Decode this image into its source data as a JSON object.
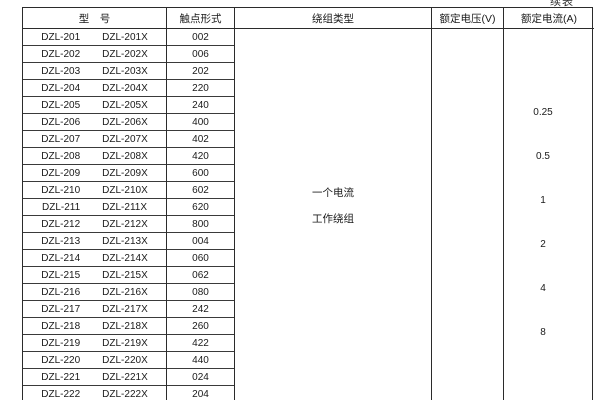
{
  "continued_label": "续表",
  "colors": {
    "background": "#ffffff",
    "border": "#2b2b2b",
    "row_line": "#3a3a3a",
    "text": "#1a1a1a"
  },
  "table": {
    "headers": {
      "model": "型　号",
      "contact_form": "触点形式",
      "winding_type": "绕组类型",
      "rated_voltage": "额定电压(V)",
      "rated_current": "额定电流(A)"
    },
    "winding_type_lines": [
      "一个电流",
      "工作绕组"
    ],
    "rated_current_values": [
      "0.25",
      "0.5",
      "1",
      "2",
      "4",
      "8"
    ],
    "rows": [
      {
        "model": "DZL-201",
        "model_x": "DZL-201X",
        "contact_form": "002"
      },
      {
        "model": "DZL-202",
        "model_x": "DZL-202X",
        "contact_form": "006"
      },
      {
        "model": "DZL-203",
        "model_x": "DZL-203X",
        "contact_form": "202"
      },
      {
        "model": "DZL-204",
        "model_x": "DZL-204X",
        "contact_form": "220"
      },
      {
        "model": "DZL-205",
        "model_x": "DZL-205X",
        "contact_form": "240"
      },
      {
        "model": "DZL-206",
        "model_x": "DZL-206X",
        "contact_form": "400"
      },
      {
        "model": "DZL-207",
        "model_x": "DZL-207X",
        "contact_form": "402"
      },
      {
        "model": "DZL-208",
        "model_x": "DZL-208X",
        "contact_form": "420"
      },
      {
        "model": "DZL-209",
        "model_x": "DZL-209X",
        "contact_form": "600"
      },
      {
        "model": "DZL-210",
        "model_x": "DZL-210X",
        "contact_form": "602"
      },
      {
        "model": "DZL-211",
        "model_x": "DZL-211X",
        "contact_form": "620"
      },
      {
        "model": "DZL-212",
        "model_x": "DZL-212X",
        "contact_form": "800"
      },
      {
        "model": "DZL-213",
        "model_x": "DZL-213X",
        "contact_form": "004"
      },
      {
        "model": "DZL-214",
        "model_x": "DZL-214X",
        "contact_form": "060"
      },
      {
        "model": "DZL-215",
        "model_x": "DZL-215X",
        "contact_form": "062"
      },
      {
        "model": "DZL-216",
        "model_x": "DZL-216X",
        "contact_form": "080"
      },
      {
        "model": "DZL-217",
        "model_x": "DZL-217X",
        "contact_form": "242"
      },
      {
        "model": "DZL-218",
        "model_x": "DZL-218X",
        "contact_form": "260"
      },
      {
        "model": "DZL-219",
        "model_x": "DZL-219X",
        "contact_form": "422"
      },
      {
        "model": "DZL-220",
        "model_x": "DZL-220X",
        "contact_form": "440"
      },
      {
        "model": "DZL-221",
        "model_x": "DZL-221X",
        "contact_form": "024"
      },
      {
        "model": "DZL-222",
        "model_x": "DZL-222X",
        "contact_form": "204"
      }
    ]
  }
}
